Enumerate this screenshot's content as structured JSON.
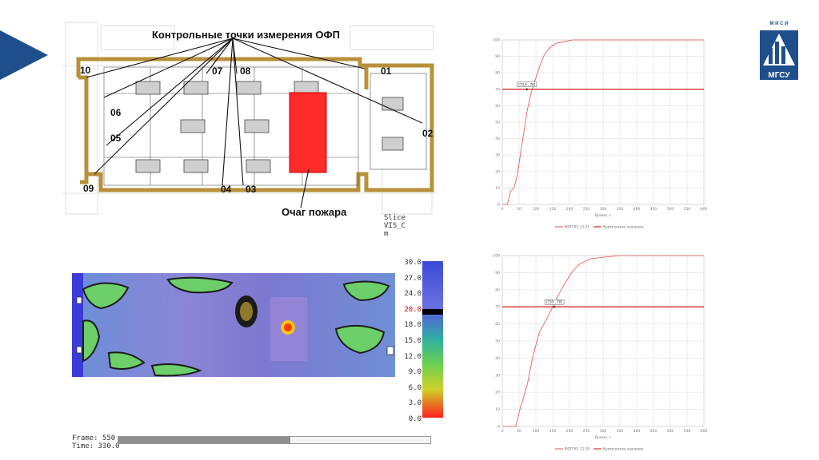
{
  "plan": {
    "caption": "Контрольные точки измерения ОФП",
    "fire_label": "Очаг пожара",
    "points": [
      "10",
      "06",
      "05",
      "09",
      "07",
      "08",
      "04",
      "03",
      "01",
      "02"
    ]
  },
  "slice": {
    "label_lines": [
      "Slice",
      "VIS_C",
      "m"
    ]
  },
  "colorbar": {
    "ticks": [
      "30.0",
      "27.0",
      "24.0",
      "20.0",
      "18.0",
      "15.0",
      "12.0",
      "9.0",
      "6.0",
      "3.0",
      "0.0"
    ],
    "highlight": "20.0",
    "highlight_color": "#cc0000"
  },
  "playback": {
    "frame": "Frame: 550",
    "time": "Time: 330.0",
    "progress": 0.55
  },
  "logo": {
    "top_text": "М И С И",
    "bottom_text": "МГСУ",
    "color": "#1f4e8c"
  },
  "charts": [
    {
      "id": "chart1",
      "chart_data": {
        "type": "line",
        "xlim": [
          0,
          600
        ],
        "ylim": [
          0,
          100
        ],
        "xticks": [
          "0",
          "50",
          "100",
          "150",
          "200",
          "250",
          "300",
          "350",
          "400",
          "450",
          "500",
          "550",
          "600"
        ],
        "yticks": [
          "0",
          "10",
          "20",
          "30",
          "40",
          "50",
          "60",
          "70",
          "80",
          "90",
          "100"
        ],
        "xlabel": "Время, с",
        "series": [
          {
            "color": "#e74c4c",
            "x": [
              0,
              15,
              25,
              35,
              45,
              55,
              65,
              75,
              85,
              95,
              105,
              115,
              125,
              140,
              160,
              185,
              210,
              240,
              300,
              600
            ],
            "y": [
              0,
              0,
              8,
              10,
              18,
              32,
              45,
              58,
              67,
              74,
              80,
              86,
              91,
              95,
              98,
              99,
              100,
              100,
              100,
              100
            ]
          },
          {
            "color": "#cc0000",
            "x": [
              0,
              600
            ],
            "y": [
              70,
              70
            ]
          }
        ],
        "annotation": {
          "text": "[73.4 , 70]",
          "x": 73.4,
          "y": 70
        },
        "legend": [
          "ФОП R5_11.23",
          "Критическое значение"
        ]
      }
    },
    {
      "id": "chart2",
      "chart_data": {
        "type": "line",
        "xlim": [
          0,
          600
        ],
        "ylim": [
          0,
          100
        ],
        "xticks": [
          "0",
          "50",
          "100",
          "150",
          "200",
          "250",
          "300",
          "350",
          "400",
          "450",
          "500",
          "550",
          "600"
        ],
        "yticks": [
          "0",
          "10",
          "20",
          "30",
          "40",
          "50",
          "60",
          "70",
          "80",
          "90",
          "100"
        ],
        "xlabel": "Время, с",
        "series": [
          {
            "color": "#e74c4c",
            "x": [
              0,
              40,
              55,
              65,
              75,
              90,
              110,
              130,
              150,
              170,
              190,
              210,
              230,
              260,
              300,
              350,
              600
            ],
            "y": [
              0,
              0,
              12,
              18,
              25,
              40,
              55,
              62,
              70,
              78,
              85,
              91,
              95,
              98,
              99,
              100,
              100
            ]
          },
          {
            "color": "#cc0000",
            "x": [
              0,
              600
            ],
            "y": [
              70,
              70
            ]
          }
        ],
        "annotation": {
          "text": "[155 , 70]",
          "x": 155,
          "y": 70
        },
        "legend": [
          "ФОП R5_11.29",
          "Критическое значение"
        ]
      }
    }
  ]
}
